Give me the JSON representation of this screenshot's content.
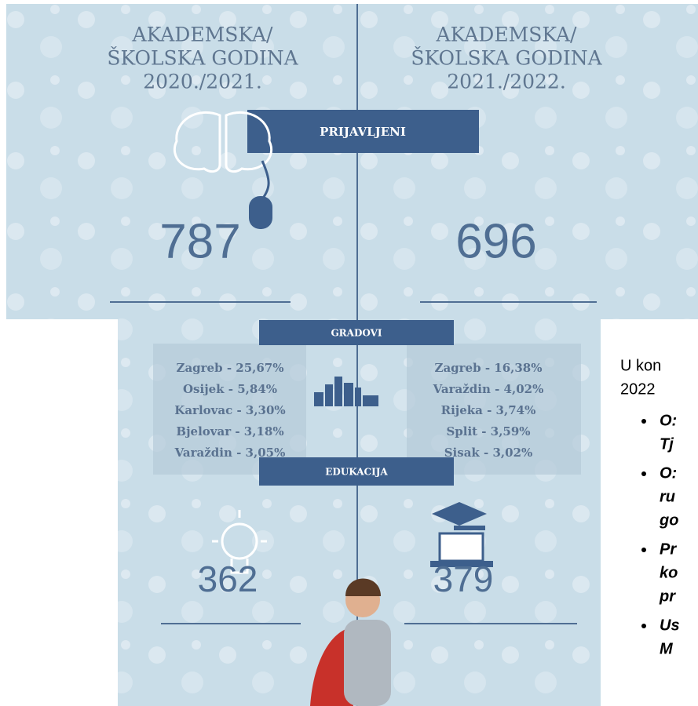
{
  "panels": [
    {
      "heading": [
        "AKADEMSKA/",
        "ŠKOLSKA GODINA",
        "2020./2021."
      ],
      "registered": "787",
      "cities": [
        "Zagreb - 25,67%",
        "Osijek - 5,84%",
        "Karlovac - 3,30%",
        "Bjelovar - 3,18%",
        "Varaždin - 3,05%"
      ],
      "education": "362"
    },
    {
      "heading": [
        "AKADEMSKA/",
        "ŠKOLSKA GODINA",
        "2021./2022."
      ],
      "registered": "696",
      "cities": [
        "Zagreb - 16,38%",
        "Varaždin - 4,02%",
        "Rijeka - 3,74%",
        "Split - 3,59%",
        "Sisak - 3,02%"
      ],
      "education": "379"
    }
  ],
  "labels": {
    "registered": "PRIJAVLJENI",
    "cities": "GRADOVI",
    "education": "EDUKACIJA"
  },
  "side_text": {
    "intro": [
      "U kon",
      "2022"
    ],
    "bullets": [
      [
        "O:",
        "Tj"
      ],
      [
        "O:",
        "ru",
        "go"
      ],
      [
        "Pr",
        "ko",
        "pr"
      ],
      [
        "Us",
        "M"
      ]
    ]
  }
}
